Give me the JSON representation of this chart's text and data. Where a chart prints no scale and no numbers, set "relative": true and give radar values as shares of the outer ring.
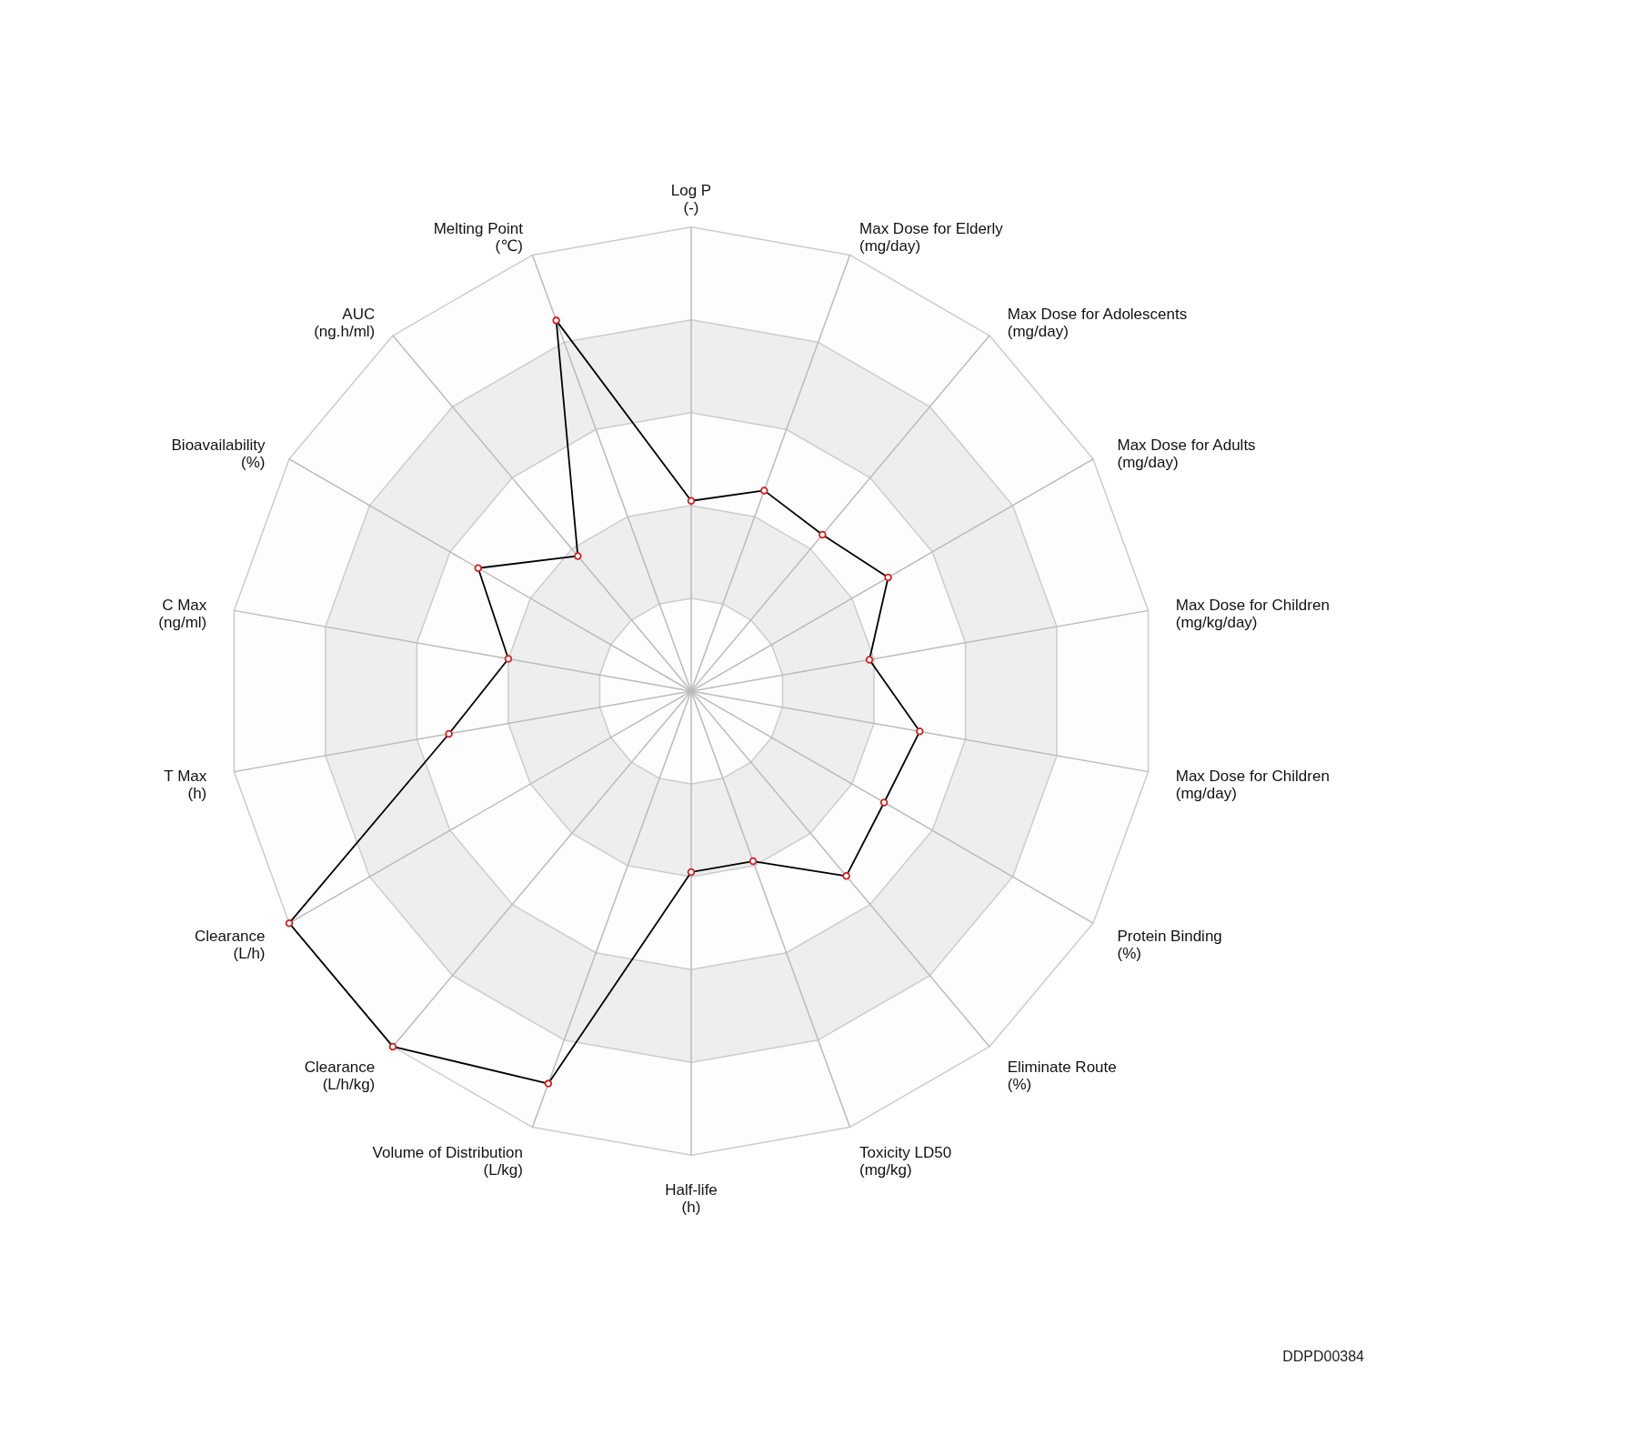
{
  "chart_data": {
    "type": "radar",
    "relative": true,
    "grid": true,
    "marker": "circle",
    "categories": [
      "Log P\n(-)",
      "Max Dose for Elderly\n(mg/day)",
      "Max Dose for Adolescents\n(mg/day)",
      "Max Dose for Adults\n(mg/day)",
      "Max Dose for Children\n(mg/kg/day)",
      "Max Dose for Children\n(mg/day)",
      "Protein Binding\n(%)",
      "Eliminate Route\n(%)",
      "Toxicity LD50\n(mg/kg)",
      "Half-life\n(h)",
      "Volume of Distribution\n(L/kg)",
      "Clearance\n(L/h/kg)",
      "Clearance\n(L/h)",
      "T Max\n(h)",
      "C Max\n(ng/ml)",
      "Bioavailability\n(%)",
      "AUC\n(ng.h/ml)",
      "Melting Point\n(℃)"
    ],
    "series": [
      {
        "color": "#000000",
        "values": [
          0.41,
          0.46,
          0.44,
          0.49,
          0.39,
          0.5,
          0.48,
          0.52,
          0.39,
          0.39,
          0.9,
          1.0,
          1.0,
          0.53,
          0.4,
          0.53,
          0.38,
          0.85
        ]
      }
    ],
    "annotations": [
      "DDPD00384"
    ]
  }
}
